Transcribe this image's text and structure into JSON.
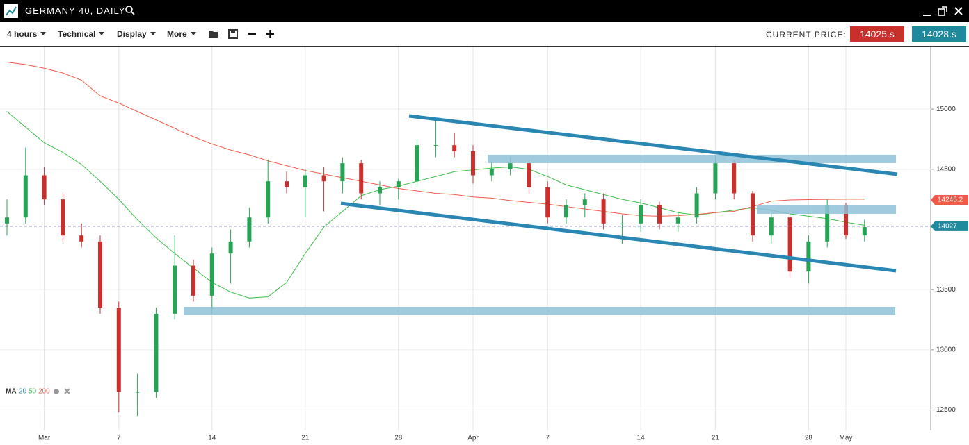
{
  "header": {
    "title": "GERMANY 40, DAILY"
  },
  "toolbar": {
    "menus": [
      "4 hours",
      "Technical",
      "Display",
      "More"
    ],
    "current_price_label": "CURRENT PRICE:",
    "bid": "14025.s",
    "ask": "14028.s"
  },
  "chart_data": {
    "type": "candlestick",
    "categories": [
      null,
      null,
      "Mar",
      null,
      null,
      null,
      "7",
      null,
      null,
      null,
      null,
      "14",
      null,
      null,
      null,
      null,
      "21",
      null,
      null,
      null,
      null,
      "28",
      null,
      null,
      null,
      "Apr",
      null,
      null,
      null,
      "7",
      null,
      null,
      null,
      null,
      "14",
      null,
      null,
      null,
      "21",
      null,
      null,
      null,
      null,
      "28",
      null,
      "May",
      null
    ],
    "open": [
      14050,
      14100,
      14450,
      14250,
      13950,
      13900,
      13350,
      12650,
      12650,
      13300,
      13700,
      13450,
      13800,
      13900,
      14100,
      14400,
      14350,
      14450,
      14400,
      14550,
      14300,
      14350,
      14400,
      14700,
      14700,
      14650,
      14450,
      14500,
      14550,
      14350,
      14100,
      14200,
      14250,
      14050,
      14050,
      14200,
      14050,
      14100,
      14300,
      14550,
      14300,
      13950,
      14100,
      13650,
      13900,
      14200,
      13950
    ],
    "high": [
      14250,
      14680,
      14520,
      14300,
      14050,
      13950,
      13400,
      12800,
      13350,
      13950,
      13750,
      13850,
      14000,
      14180,
      14580,
      14480,
      14500,
      14520,
      14600,
      14580,
      14400,
      14420,
      14750,
      14920,
      14800,
      14700,
      14560,
      14600,
      14580,
      14400,
      14250,
      14300,
      14300,
      14120,
      14250,
      14230,
      14150,
      14350,
      14620,
      14580,
      14320,
      14150,
      14160,
      13950,
      14250,
      14220,
      14080
    ],
    "low": [
      13950,
      14050,
      14200,
      13900,
      13850,
      13300,
      12480,
      12450,
      12600,
      13250,
      13400,
      13300,
      13550,
      13850,
      14050,
      14300,
      14100,
      14150,
      14300,
      14250,
      14200,
      14250,
      14350,
      14600,
      14600,
      14380,
      14400,
      14450,
      14300,
      14050,
      14050,
      14100,
      14000,
      13880,
      13980,
      14000,
      13980,
      14050,
      14250,
      14250,
      13900,
      13880,
      13600,
      13550,
      13850,
      13920,
      13900
    ],
    "close": [
      14100,
      14450,
      14250,
      13950,
      13900,
      13350,
      12650,
      12650,
      13300,
      13700,
      13450,
      13800,
      13900,
      14100,
      14400,
      14350,
      14450,
      14400,
      14550,
      14300,
      14350,
      14400,
      14700,
      14700,
      14650,
      14450,
      14500,
      14550,
      14350,
      14100,
      14200,
      14250,
      14050,
      14050,
      14200,
      14050,
      14100,
      14300,
      14550,
      14300,
      13950,
      14100,
      13650,
      13900,
      14200,
      13950,
      14020
    ],
    "up_color": "#27a354",
    "down_color": "#c9302c",
    "ma_lines": [
      {
        "color": "#3cbf4a",
        "values": [
          14980,
          14850,
          14720,
          14640,
          14540,
          14400,
          14250,
          14080,
          13930,
          13800,
          13680,
          13560,
          13480,
          13430,
          13440,
          13560,
          13800,
          14020,
          14150,
          14280,
          14330,
          14360,
          14400,
          14440,
          14480,
          14495,
          14510,
          14520,
          14500,
          14440,
          14370,
          14330,
          14290,
          14250,
          14220,
          14180,
          14140,
          14120,
          14140,
          14160,
          14180,
          14160,
          14130,
          14110,
          14090,
          14060,
          14035
        ]
      },
      {
        "color": "#ef5a4a",
        "values": [
          15390,
          15370,
          15340,
          15300,
          15240,
          15110,
          15050,
          14980,
          14910,
          14840,
          14770,
          14710,
          14660,
          14620,
          14570,
          14530,
          14490,
          14460,
          14430,
          14400,
          14370,
          14340,
          14320,
          14300,
          14290,
          14270,
          14260,
          14240,
          14225,
          14210,
          14190,
          14170,
          14150,
          14130,
          14115,
          14110,
          14115,
          14125,
          14140,
          14150,
          14190,
          14235,
          14245,
          14248,
          14250,
          14252,
          14252
        ]
      }
    ],
    "ma_legend": {
      "label": "MA",
      "periods": [
        {
          "value": 20,
          "color": "#2b8cbe"
        },
        {
          "value": 50,
          "color": "#3cbf4a"
        },
        {
          "value": 200,
          "color": "#ef5a4a"
        }
      ]
    },
    "ma_tag": {
      "value": 14245.2,
      "color": "#ef5a4a"
    },
    "price_tag": {
      "value": 14027,
      "color": "#1f8a9e"
    },
    "ylim": [
      12330,
      15520
    ],
    "yticks": [
      12500,
      13000,
      13500,
      14500,
      15000
    ],
    "grid": true
  }
}
